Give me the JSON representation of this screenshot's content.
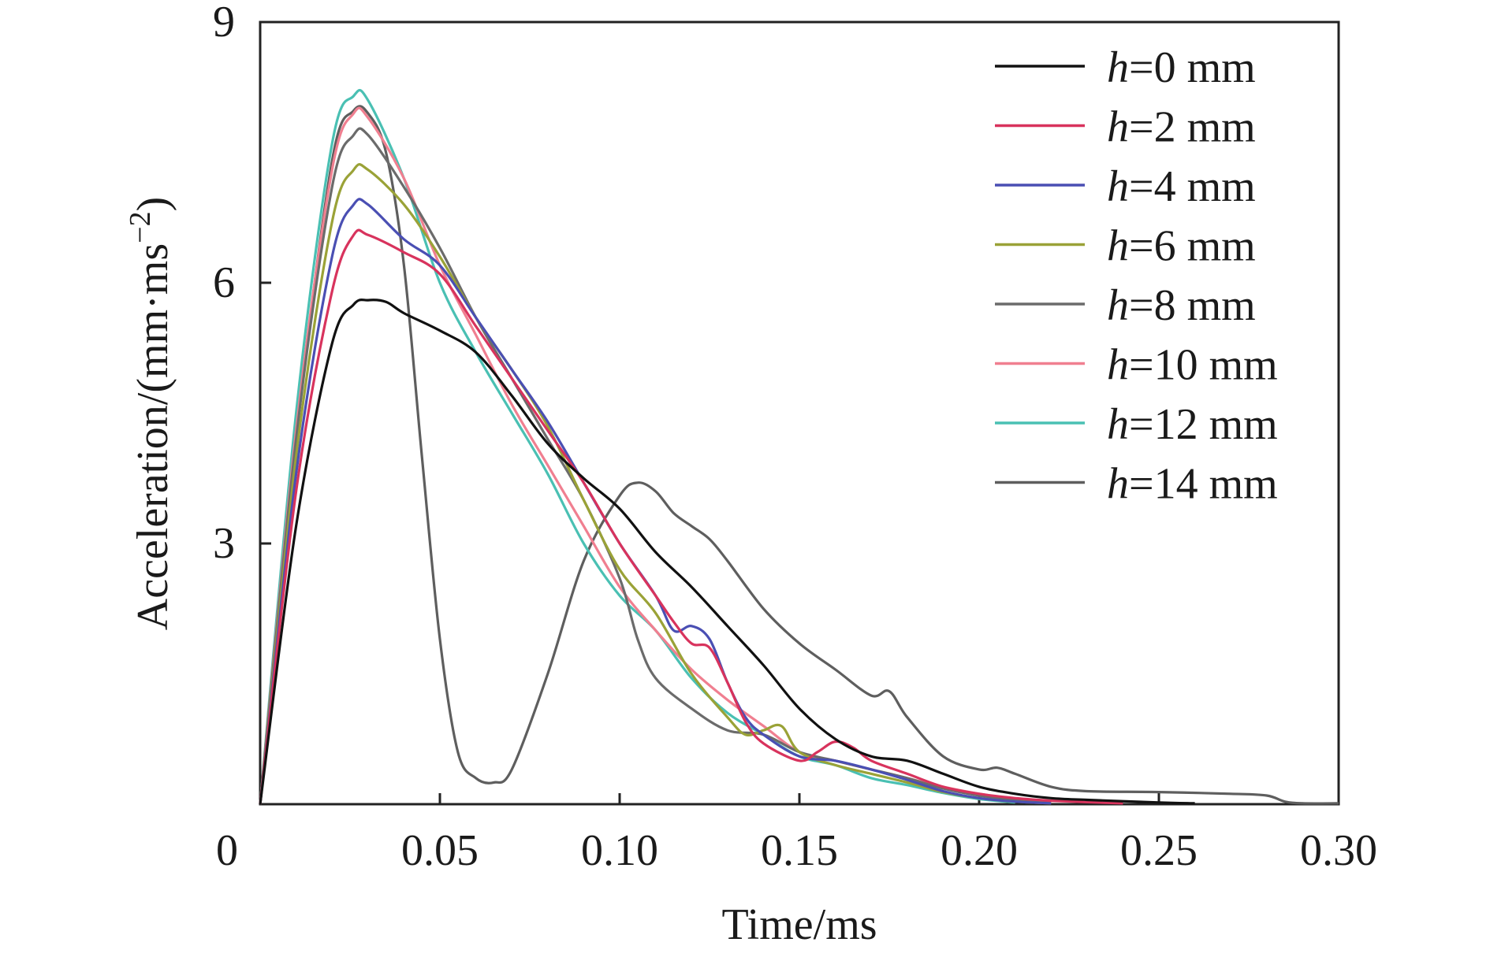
{
  "chart_data": {
    "type": "line",
    "xlabel": "Time/ms",
    "ylabel": "Acceleration/(mm·ms",
    "ylabel_sup": "−2",
    "ylabel_close": ")",
    "xlim": [
      0,
      0.3
    ],
    "ylim": [
      0,
      9
    ],
    "xticks": [
      {
        "value": 0,
        "label": "0"
      },
      {
        "value": 0.05,
        "label": "0.05"
      },
      {
        "value": 0.1,
        "label": "0.10"
      },
      {
        "value": 0.15,
        "label": "0.15"
      },
      {
        "value": 0.2,
        "label": "0.20"
      },
      {
        "value": 0.25,
        "label": "0.25"
      },
      {
        "value": 0.3,
        "label": "0.30"
      }
    ],
    "yticks": [
      {
        "value": 3,
        "label": "3"
      },
      {
        "value": 6,
        "label": "6"
      },
      {
        "value": 9,
        "label": "9"
      }
    ],
    "grid": false,
    "legend_position": "top-right",
    "series": [
      {
        "var": "h",
        "label": "=0 mm",
        "color": "#111111",
        "points": [
          [
            0,
            0
          ],
          [
            0.01,
            3.2
          ],
          [
            0.02,
            5.3
          ],
          [
            0.026,
            5.75
          ],
          [
            0.03,
            5.8
          ],
          [
            0.035,
            5.78
          ],
          [
            0.04,
            5.65
          ],
          [
            0.05,
            5.45
          ],
          [
            0.06,
            5.2
          ],
          [
            0.07,
            4.7
          ],
          [
            0.08,
            4.15
          ],
          [
            0.09,
            3.75
          ],
          [
            0.1,
            3.4
          ],
          [
            0.11,
            2.9
          ],
          [
            0.12,
            2.5
          ],
          [
            0.13,
            2.05
          ],
          [
            0.14,
            1.6
          ],
          [
            0.15,
            1.1
          ],
          [
            0.16,
            0.75
          ],
          [
            0.17,
            0.55
          ],
          [
            0.18,
            0.5
          ],
          [
            0.19,
            0.35
          ],
          [
            0.2,
            0.2
          ],
          [
            0.21,
            0.12
          ],
          [
            0.22,
            0.07
          ],
          [
            0.23,
            0.05
          ],
          [
            0.25,
            0.02
          ],
          [
            0.26,
            0.01
          ]
        ]
      },
      {
        "var": "h",
        "label": "=2 mm",
        "color": "#d8335d",
        "points": [
          [
            0,
            0
          ],
          [
            0.01,
            3.6
          ],
          [
            0.02,
            5.9
          ],
          [
            0.026,
            6.55
          ],
          [
            0.03,
            6.55
          ],
          [
            0.04,
            6.35
          ],
          [
            0.05,
            6.1
          ],
          [
            0.06,
            5.5
          ],
          [
            0.07,
            4.9
          ],
          [
            0.08,
            4.3
          ],
          [
            0.09,
            3.7
          ],
          [
            0.1,
            3.0
          ],
          [
            0.11,
            2.4
          ],
          [
            0.115,
            2.1
          ],
          [
            0.12,
            1.85
          ],
          [
            0.125,
            1.8
          ],
          [
            0.13,
            1.4
          ],
          [
            0.135,
            0.95
          ],
          [
            0.14,
            0.7
          ],
          [
            0.15,
            0.5
          ],
          [
            0.155,
            0.6
          ],
          [
            0.16,
            0.72
          ],
          [
            0.165,
            0.65
          ],
          [
            0.17,
            0.5
          ],
          [
            0.18,
            0.35
          ],
          [
            0.19,
            0.2
          ],
          [
            0.2,
            0.12
          ],
          [
            0.21,
            0.07
          ],
          [
            0.22,
            0.04
          ],
          [
            0.24,
            0.01
          ]
        ]
      },
      {
        "var": "h",
        "label": "=4 mm",
        "color": "#4a4fb3",
        "points": [
          [
            0,
            0
          ],
          [
            0.01,
            3.8
          ],
          [
            0.02,
            6.3
          ],
          [
            0.026,
            6.9
          ],
          [
            0.03,
            6.9
          ],
          [
            0.04,
            6.5
          ],
          [
            0.05,
            6.2
          ],
          [
            0.06,
            5.6
          ],
          [
            0.07,
            5.0
          ],
          [
            0.08,
            4.4
          ],
          [
            0.09,
            3.7
          ],
          [
            0.1,
            3.0
          ],
          [
            0.11,
            2.4
          ],
          [
            0.115,
            2.0
          ],
          [
            0.12,
            2.05
          ],
          [
            0.125,
            1.9
          ],
          [
            0.13,
            1.4
          ],
          [
            0.135,
            1.0
          ],
          [
            0.14,
            0.8
          ],
          [
            0.15,
            0.55
          ],
          [
            0.16,
            0.5
          ],
          [
            0.17,
            0.4
          ],
          [
            0.18,
            0.28
          ],
          [
            0.19,
            0.15
          ],
          [
            0.2,
            0.07
          ],
          [
            0.21,
            0.03
          ],
          [
            0.22,
            0.01
          ]
        ]
      },
      {
        "var": "h",
        "label": "=6 mm",
        "color": "#9aa237",
        "points": [
          [
            0,
            0
          ],
          [
            0.01,
            4.0
          ],
          [
            0.02,
            6.7
          ],
          [
            0.026,
            7.3
          ],
          [
            0.03,
            7.3
          ],
          [
            0.04,
            6.9
          ],
          [
            0.05,
            6.3
          ],
          [
            0.06,
            5.6
          ],
          [
            0.07,
            5.0
          ],
          [
            0.08,
            4.35
          ],
          [
            0.09,
            3.5
          ],
          [
            0.1,
            2.7
          ],
          [
            0.11,
            2.2
          ],
          [
            0.12,
            1.5
          ],
          [
            0.13,
            1.0
          ],
          [
            0.135,
            0.8
          ],
          [
            0.14,
            0.85
          ],
          [
            0.145,
            0.9
          ],
          [
            0.15,
            0.6
          ],
          [
            0.16,
            0.45
          ],
          [
            0.17,
            0.35
          ],
          [
            0.18,
            0.25
          ],
          [
            0.19,
            0.14
          ],
          [
            0.2,
            0.07
          ],
          [
            0.21,
            0.03
          ],
          [
            0.22,
            0.01
          ]
        ]
      },
      {
        "var": "h",
        "label": "=8 mm",
        "color": "#6b6b6b",
        "points": [
          [
            0,
            0
          ],
          [
            0.01,
            4.2
          ],
          [
            0.02,
            7.1
          ],
          [
            0.026,
            7.7
          ],
          [
            0.03,
            7.7
          ],
          [
            0.04,
            7.1
          ],
          [
            0.05,
            6.4
          ],
          [
            0.06,
            5.6
          ],
          [
            0.07,
            4.9
          ],
          [
            0.08,
            4.2
          ],
          [
            0.09,
            3.5
          ],
          [
            0.1,
            2.6
          ],
          [
            0.105,
            1.9
          ],
          [
            0.11,
            1.45
          ],
          [
            0.12,
            1.1
          ],
          [
            0.13,
            0.85
          ],
          [
            0.14,
            0.8
          ],
          [
            0.15,
            0.6
          ],
          [
            0.16,
            0.5
          ],
          [
            0.17,
            0.4
          ],
          [
            0.18,
            0.3
          ],
          [
            0.19,
            0.18
          ],
          [
            0.2,
            0.1
          ],
          [
            0.21,
            0.05
          ],
          [
            0.22,
            0.02
          ]
        ]
      },
      {
        "var": "h",
        "label": "=10 mm",
        "color": "#f07f90",
        "points": [
          [
            0,
            0
          ],
          [
            0.01,
            4.3
          ],
          [
            0.02,
            7.3
          ],
          [
            0.026,
            7.95
          ],
          [
            0.03,
            7.9
          ],
          [
            0.04,
            7.2
          ],
          [
            0.05,
            6.2
          ],
          [
            0.06,
            5.4
          ],
          [
            0.07,
            4.6
          ],
          [
            0.08,
            3.9
          ],
          [
            0.09,
            3.2
          ],
          [
            0.1,
            2.5
          ],
          [
            0.11,
            2.0
          ],
          [
            0.12,
            1.55
          ],
          [
            0.13,
            1.2
          ],
          [
            0.14,
            0.9
          ],
          [
            0.15,
            0.6
          ],
          [
            0.16,
            0.5
          ],
          [
            0.17,
            0.4
          ],
          [
            0.18,
            0.3
          ],
          [
            0.19,
            0.2
          ],
          [
            0.2,
            0.12
          ],
          [
            0.21,
            0.06
          ],
          [
            0.22,
            0.02
          ]
        ]
      },
      {
        "var": "h",
        "label": "=12 mm",
        "color": "#4ac0b3",
        "points": [
          [
            0,
            0
          ],
          [
            0.01,
            4.5
          ],
          [
            0.02,
            7.6
          ],
          [
            0.026,
            8.15
          ],
          [
            0.03,
            8.1
          ],
          [
            0.04,
            7.2
          ],
          [
            0.05,
            6.0
          ],
          [
            0.06,
            5.2
          ],
          [
            0.07,
            4.5
          ],
          [
            0.08,
            3.8
          ],
          [
            0.09,
            3.0
          ],
          [
            0.1,
            2.4
          ],
          [
            0.11,
            2.0
          ],
          [
            0.12,
            1.45
          ],
          [
            0.13,
            1.05
          ],
          [
            0.14,
            0.8
          ],
          [
            0.15,
            0.55
          ],
          [
            0.16,
            0.45
          ],
          [
            0.17,
            0.3
          ],
          [
            0.18,
            0.22
          ],
          [
            0.19,
            0.13
          ],
          [
            0.2,
            0.06
          ],
          [
            0.21,
            0.02
          ]
        ]
      },
      {
        "var": "h",
        "label": "=14 mm",
        "color": "#5e5e5e",
        "points": [
          [
            0,
            0
          ],
          [
            0.01,
            4.2
          ],
          [
            0.02,
            7.4
          ],
          [
            0.026,
            7.98
          ],
          [
            0.03,
            7.95
          ],
          [
            0.035,
            7.5
          ],
          [
            0.04,
            6.2
          ],
          [
            0.045,
            4.0
          ],
          [
            0.05,
            1.9
          ],
          [
            0.055,
            0.6
          ],
          [
            0.06,
            0.3
          ],
          [
            0.065,
            0.25
          ],
          [
            0.07,
            0.4
          ],
          [
            0.08,
            1.5
          ],
          [
            0.09,
            2.8
          ],
          [
            0.1,
            3.55
          ],
          [
            0.105,
            3.7
          ],
          [
            0.11,
            3.6
          ],
          [
            0.115,
            3.35
          ],
          [
            0.12,
            3.2
          ],
          [
            0.125,
            3.05
          ],
          [
            0.13,
            2.8
          ],
          [
            0.14,
            2.25
          ],
          [
            0.15,
            1.85
          ],
          [
            0.16,
            1.55
          ],
          [
            0.17,
            1.25
          ],
          [
            0.175,
            1.3
          ],
          [
            0.18,
            1.0
          ],
          [
            0.19,
            0.55
          ],
          [
            0.2,
            0.4
          ],
          [
            0.205,
            0.42
          ],
          [
            0.21,
            0.35
          ],
          [
            0.22,
            0.2
          ],
          [
            0.23,
            0.15
          ],
          [
            0.25,
            0.14
          ],
          [
            0.27,
            0.12
          ],
          [
            0.28,
            0.1
          ],
          [
            0.285,
            0.03
          ],
          [
            0.29,
            0.01
          ],
          [
            0.3,
            0.01
          ]
        ]
      }
    ]
  }
}
